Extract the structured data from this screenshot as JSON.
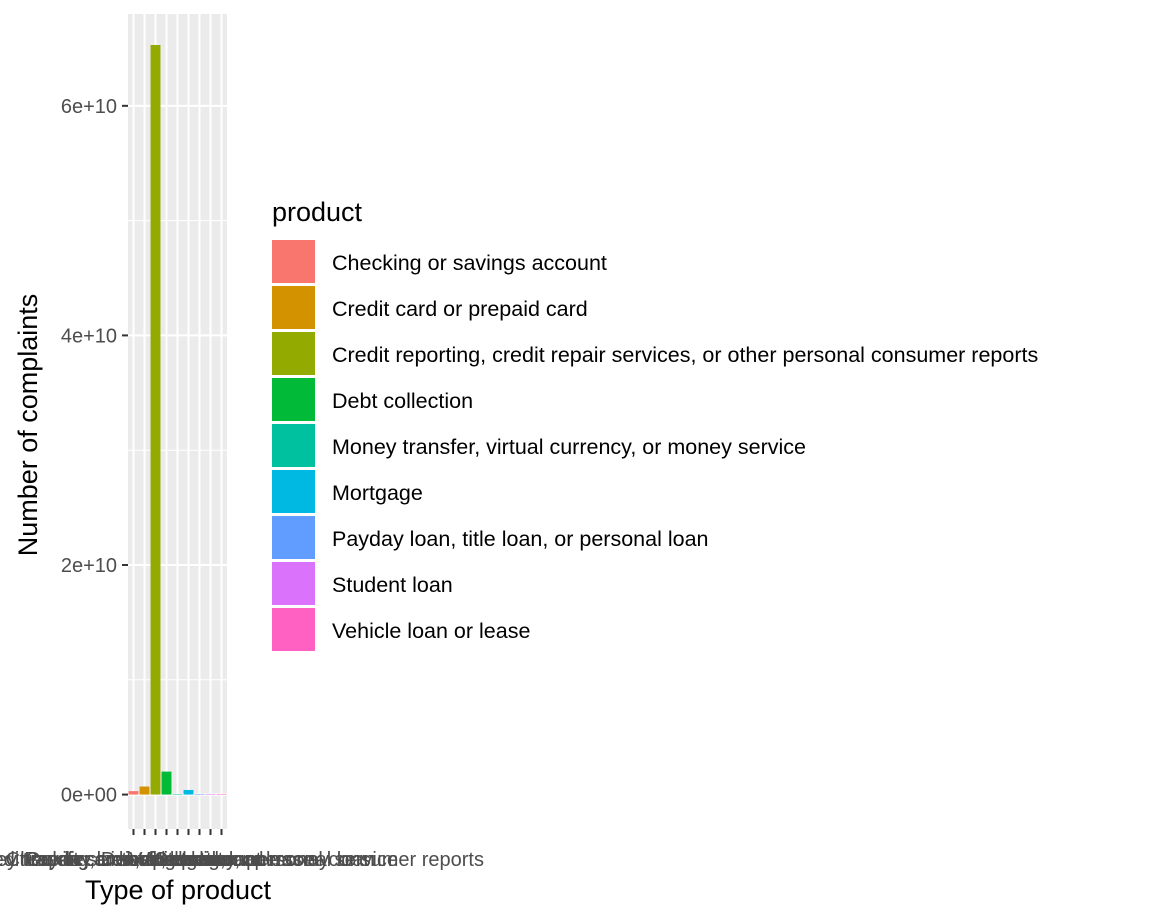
{
  "chart_data": {
    "type": "bar",
    "title": "",
    "xlabel": "Type of product",
    "ylabel": "Number of complaints",
    "ylim": [
      -3000000000,
      68000000000
    ],
    "yticks": [
      0,
      20000000000,
      40000000000,
      60000000000
    ],
    "ytick_labels": [
      "0e+00",
      "2e+10",
      "4e+10",
      "6e+10"
    ],
    "grid": true,
    "legend": {
      "title": "product",
      "position": "right"
    },
    "categories": [
      "Checking or savings account",
      "Credit card or prepaid card",
      "Credit reporting, credit repair services, or other personal consumer reports",
      "Debt collection",
      "Money transfer, virtual currency, or money service",
      "Mortgage",
      "Payday loan, title loan, or personal loan",
      "Student loan",
      "Vehicle loan or lease"
    ],
    "values": [
      300000000,
      700000000,
      65300000000,
      2000000000,
      30000000,
      400000000,
      20000000,
      40000000,
      30000000
    ],
    "colors": [
      "#F8766D",
      "#D39200",
      "#93AA00",
      "#00BA38",
      "#00C19F",
      "#00B9E3",
      "#619CFF",
      "#DB72FB",
      "#FF61C3"
    ]
  }
}
